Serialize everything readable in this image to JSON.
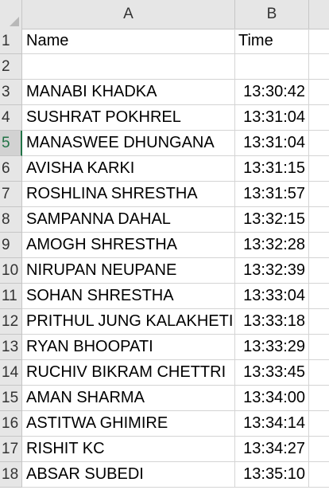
{
  "column_headers": [
    "A",
    "B"
  ],
  "row_numbers": [
    "1",
    "2",
    "3",
    "4",
    "5",
    "6",
    "7",
    "8",
    "9",
    "10",
    "11",
    "12",
    "13",
    "14",
    "15",
    "16",
    "17",
    "18"
  ],
  "selected_row": "5",
  "rows": [
    {
      "a": "Name",
      "b": "Time"
    },
    {
      "a": "",
      "b": ""
    },
    {
      "a": "MANABI KHADKA",
      "b": "13:30:42"
    },
    {
      "a": "SUSHRAT POKHREL",
      "b": "13:31:04"
    },
    {
      "a": "MANASWEE DHUNGANA",
      "b": "13:31:04"
    },
    {
      "a": "AVISHA KARKI",
      "b": "13:31:15"
    },
    {
      "a": "ROSHLINA SHRESTHA",
      "b": "13:31:57"
    },
    {
      "a": "SAMPANNA DAHAL",
      "b": "13:32:15"
    },
    {
      "a": "AMOGH SHRESTHA",
      "b": "13:32:28"
    },
    {
      "a": "NIRUPAN NEUPANE",
      "b": "13:32:39"
    },
    {
      "a": "SOHAN SHRESTHA",
      "b": "13:33:04"
    },
    {
      "a": "PRITHUL JUNG KALAKHETI",
      "b": "13:33:18"
    },
    {
      "a": "RYAN BHOOPATI",
      "b": "13:33:29"
    },
    {
      "a": "RUCHIV BIKRAM CHETTRI",
      "b": "13:33:45"
    },
    {
      "a": "AMAN SHARMA",
      "b": "13:34:00"
    },
    {
      "a": "ASTITWA GHIMIRE",
      "b": "13:34:14"
    },
    {
      "a": "RISHIT KC",
      "b": "13:34:27"
    },
    {
      "a": "ABSAR SUBEDI",
      "b": "13:35:10"
    }
  ]
}
